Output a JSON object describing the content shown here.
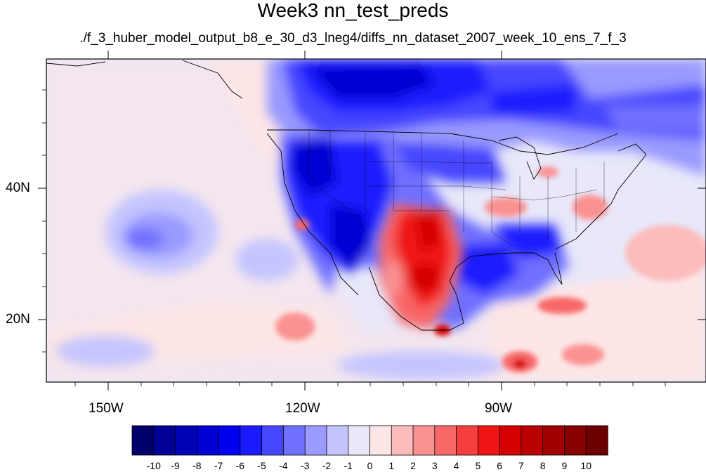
{
  "title": "Week3 nn_test_preds",
  "subtitle": "./f_3_huber_model_output_b8_e_30_d3_lneg4/diffs_nn_dataset_2007_week_10_ens_7_f_3",
  "map": {
    "lon_labels": [
      "150W",
      "120W",
      "90W"
    ],
    "lat_labels": [
      "40N",
      "20N"
    ]
  },
  "colorbar": {
    "labels": [
      "-10",
      "-9",
      "-8",
      "-7",
      "-6",
      "-5",
      "-4",
      "-3",
      "-2",
      "-1",
      "0",
      "1",
      "2",
      "3",
      "4",
      "5",
      "6",
      "7",
      "8",
      "9",
      "10"
    ],
    "colors": [
      "#00006b",
      "#000096",
      "#0000b4",
      "#0000d2",
      "#0000f0",
      "#1a1aff",
      "#4646ff",
      "#7070ff",
      "#9a9aff",
      "#c4c4ff",
      "#e8e8fa",
      "#fde6e6",
      "#fcbcbc",
      "#fa9292",
      "#f86868",
      "#f53e3e",
      "#f01414",
      "#d60000",
      "#bb0000",
      "#a00000",
      "#860000",
      "#6b0000"
    ]
  }
}
